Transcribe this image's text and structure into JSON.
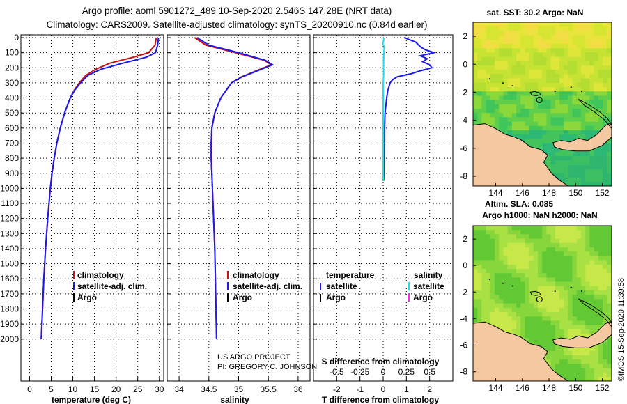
{
  "title_line1": "Argo profile: aoml 5901272_489 10-Sep-2020 2.546S 147.28E (NRT data)",
  "title_line2": "Climatology: CARS2009. Satellite-adjusted climatology: synTS_20200910.nc (0.84d earlier)",
  "colors": {
    "clim": "#cc1111",
    "sat": "#1a1aee",
    "argo": "#000000",
    "sat_cyan": "#22dde6",
    "argo_magenta": "#ff22ff",
    "land": "#f4c8a0"
  },
  "chart_data": [
    {
      "type": "line",
      "title": "",
      "xlabel": "temperature (deg C)",
      "ylabel": "",
      "xlim": [
        -2,
        31
      ],
      "ylim": [
        2050,
        0
      ],
      "xticks": [
        0,
        5,
        10,
        15,
        20,
        25,
        30
      ],
      "yticks": [
        0,
        100,
        200,
        300,
        400,
        500,
        600,
        700,
        800,
        900,
        1000,
        1100,
        1200,
        1300,
        1400,
        1500,
        1600,
        1700,
        1800,
        1900,
        2000
      ],
      "legend": [
        "climatology",
        "satellite-adj. clim.",
        "Argo"
      ],
      "series": [
        {
          "name": "climatology",
          "color": "#cc1111",
          "depth": [
            0,
            50,
            100,
            130,
            170,
            210,
            250,
            300,
            350,
            400,
            500,
            600,
            700,
            800,
            900,
            1000,
            1200,
            1400,
            1600,
            1800,
            2000
          ],
          "values": [
            29.3,
            29.0,
            27.5,
            24.0,
            18.5,
            15.3,
            13.0,
            11.5,
            10.3,
            9.4,
            8.1,
            7.1,
            6.3,
            5.7,
            5.2,
            4.8,
            4.2,
            3.7,
            3.3,
            3.0,
            2.7
          ]
        },
        {
          "name": "satellite-adj. clim.",
          "color": "#1a1aee",
          "depth": [
            0,
            50,
            100,
            130,
            170,
            210,
            250,
            300,
            350,
            400,
            500,
            600,
            700,
            800,
            900,
            1000,
            1200,
            1400,
            1600,
            1800,
            2000
          ],
          "values": [
            29.8,
            29.6,
            29.1,
            27.0,
            21.5,
            16.5,
            13.5,
            11.8,
            10.4,
            9.4,
            8.1,
            7.1,
            6.3,
            5.7,
            5.2,
            4.8,
            4.2,
            3.7,
            3.3,
            3.0,
            2.7
          ]
        }
      ]
    },
    {
      "type": "line",
      "title": "",
      "xlabel": "salinity",
      "ylabel": "",
      "xlim": [
        33.8,
        36.2
      ],
      "ylim": [
        2050,
        0
      ],
      "xticks": [
        34,
        34.5,
        35,
        35.5,
        36
      ],
      "legend": [
        "climatology",
        "satellite-adj. clim.",
        "Argo"
      ],
      "series": [
        {
          "name": "climatology",
          "color": "#cc1111",
          "depth": [
            0,
            50,
            100,
            150,
            180,
            220,
            260,
            300,
            400,
            500,
            600,
            700,
            800,
            900,
            1000,
            1200,
            1400,
            1600,
            1800,
            2000
          ],
          "values": [
            34.26,
            34.45,
            34.95,
            35.43,
            35.55,
            35.3,
            35.05,
            34.88,
            34.7,
            34.6,
            34.55,
            34.54,
            34.54,
            34.55,
            34.56,
            34.58,
            34.6,
            34.61,
            34.62,
            34.63
          ]
        },
        {
          "name": "satellite-adj. clim.",
          "color": "#1a1aee",
          "depth": [
            0,
            50,
            100,
            150,
            180,
            220,
            260,
            300,
            400,
            500,
            600,
            700,
            800,
            900,
            1000,
            1200,
            1400,
            1600,
            1800,
            2000
          ],
          "values": [
            34.3,
            34.5,
            35.0,
            35.45,
            35.57,
            35.32,
            35.06,
            34.88,
            34.7,
            34.6,
            34.55,
            34.54,
            34.54,
            34.55,
            34.56,
            34.58,
            34.6,
            34.61,
            34.62,
            34.63
          ]
        }
      ],
      "annotations": [
        "US ARGO PROJECT",
        "PI: GREGORY C. JOHNSON"
      ]
    },
    {
      "type": "line",
      "title": "",
      "xlabel": "T difference from climatology",
      "secondary_xlabel": "S difference from climatology",
      "xlim": [
        -3,
        3
      ],
      "ylim": [
        2050,
        0
      ],
      "xticks": [
        -2,
        -1,
        0,
        1,
        2
      ],
      "secondary_xticks": [
        "-0.5",
        "-0.25",
        "0",
        "0.25",
        "0.5"
      ],
      "legend_temperature": [
        "temperature",
        "satellite",
        "Argo"
      ],
      "legend_salinity": [
        "salinity",
        "satellite",
        "Argo"
      ],
      "series": [
        {
          "name": "temperature satellite",
          "color": "#1a1aee",
          "depth": [
            0,
            30,
            60,
            80,
            100,
            120,
            140,
            160,
            180,
            200,
            220,
            240,
            260,
            280,
            300,
            350,
            400,
            500,
            600,
            700,
            800,
            900,
            950
          ],
          "values": [
            0.9,
            1.4,
            1.6,
            1.8,
            2.2,
            1.6,
            1.9,
            1.7,
            2.0,
            2.1,
            1.6,
            1.2,
            0.6,
            0.4,
            0.3,
            0.2,
            0.15,
            0.08,
            0.06,
            0.05,
            0.04,
            0.03,
            0.02
          ]
        },
        {
          "name": "salinity satellite",
          "color": "#22dde6",
          "depth": [
            0,
            20,
            40,
            60,
            80,
            100,
            150,
            200,
            250,
            300,
            350,
            400,
            500,
            600,
            700,
            800,
            900,
            950
          ],
          "values": [
            0.03,
            0.02,
            -0.02,
            0.05,
            0.02,
            0.03,
            0.02,
            0.02,
            0.02,
            0.0,
            0.0,
            0.0,
            0.0,
            0.0,
            0.0,
            0.0,
            0.0,
            0.0
          ]
        }
      ]
    },
    {
      "type": "heatmap",
      "title": "sat. SST: 30.2 Argo: NaN",
      "bottom_label": "Altim. SLA: 0.085",
      "xticks": [
        144,
        146,
        148,
        150,
        152
      ],
      "yticks": [
        2,
        0,
        -2,
        -4,
        -6,
        -8
      ],
      "xlim": [
        142.3,
        152.7
      ],
      "ylim": [
        -8.7,
        3.0
      ],
      "marker": {
        "lon": 147.28,
        "lat": -2.546
      }
    },
    {
      "type": "heatmap",
      "title": "Argo h1000: NaN h2000: NaN",
      "xticks": [
        144,
        146,
        148,
        150,
        152
      ],
      "yticks": [
        2,
        0,
        -2,
        -4,
        -6,
        -8
      ],
      "xlim": [
        142.3,
        152.7
      ],
      "ylim": [
        -8.7,
        3.0
      ],
      "marker": {
        "lon": 147.28,
        "lat": -2.546
      }
    }
  ],
  "credit": "©IMOS 15-Sep-2020 11:39:58"
}
